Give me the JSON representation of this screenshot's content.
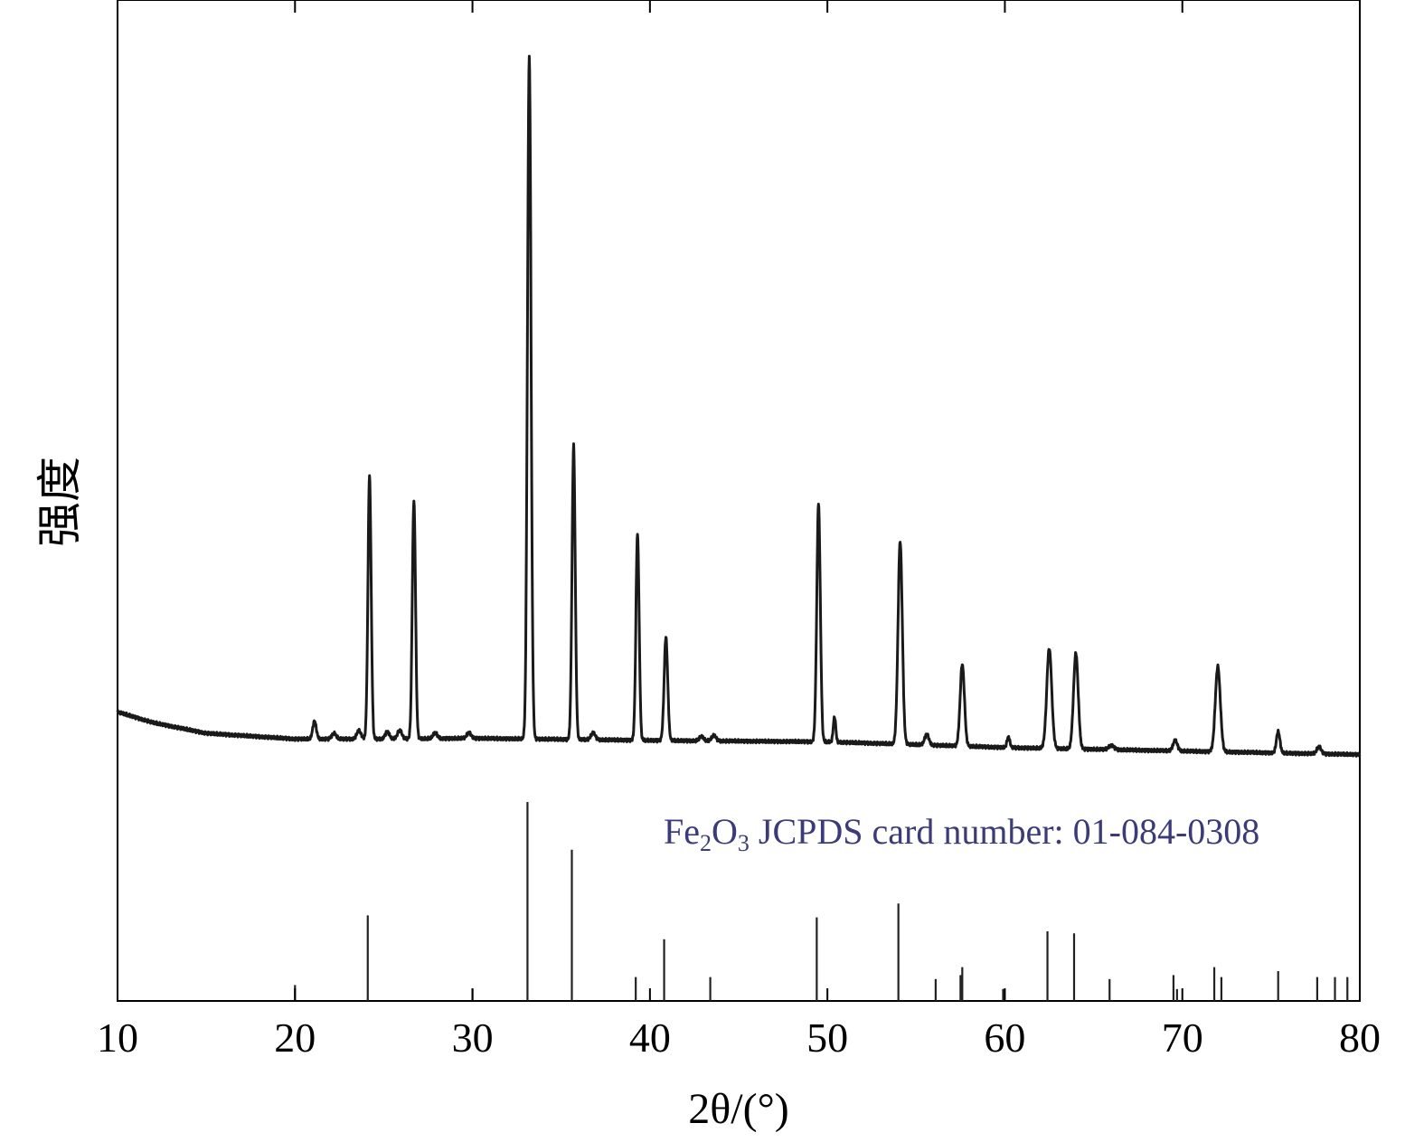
{
  "chart_data": {
    "type": "line",
    "xlabel": "2θ/(°)",
    "ylabel": "强度",
    "xlim": [
      10,
      80
    ],
    "x_ticks": [
      "10",
      "20",
      "30",
      "40",
      "50",
      "60",
      "70",
      "80"
    ],
    "grid": false,
    "line_color": "#1a1a1a",
    "reference_color": "#3b3b7a",
    "series": [
      {
        "baseline": [
          [
            10,
            0.1
          ],
          [
            12,
            0.085
          ],
          [
            15,
            0.07
          ],
          [
            20,
            0.062
          ],
          [
            25,
            0.062
          ],
          [
            30,
            0.063
          ],
          [
            40,
            0.06
          ],
          [
            50,
            0.058
          ],
          [
            60,
            0.05
          ],
          [
            70,
            0.045
          ],
          [
            80,
            0.04
          ]
        ],
        "peaks": [
          {
            "x": 21.1,
            "h": 0.025,
            "w": 0.1
          },
          {
            "x": 22.2,
            "h": 0.008,
            "w": 0.12
          },
          {
            "x": 23.6,
            "h": 0.012,
            "w": 0.12
          },
          {
            "x": 24.2,
            "h": 0.37,
            "w": 0.09
          },
          {
            "x": 25.2,
            "h": 0.01,
            "w": 0.12
          },
          {
            "x": 25.9,
            "h": 0.012,
            "w": 0.12
          },
          {
            "x": 26.7,
            "h": 0.335,
            "w": 0.09
          },
          {
            "x": 27.9,
            "h": 0.008,
            "w": 0.12
          },
          {
            "x": 29.8,
            "h": 0.008,
            "w": 0.12
          },
          {
            "x": 33.2,
            "h": 0.96,
            "w": 0.1
          },
          {
            "x": 35.7,
            "h": 0.415,
            "w": 0.09
          },
          {
            "x": 36.8,
            "h": 0.01,
            "w": 0.12
          },
          {
            "x": 39.3,
            "h": 0.29,
            "w": 0.09
          },
          {
            "x": 40.9,
            "h": 0.145,
            "w": 0.1
          },
          {
            "x": 42.9,
            "h": 0.006,
            "w": 0.12
          },
          {
            "x": 43.6,
            "h": 0.008,
            "w": 0.12
          },
          {
            "x": 49.5,
            "h": 0.335,
            "w": 0.1
          },
          {
            "x": 50.4,
            "h": 0.035,
            "w": 0.07
          },
          {
            "x": 54.1,
            "h": 0.285,
            "w": 0.12
          },
          {
            "x": 55.6,
            "h": 0.015,
            "w": 0.12
          },
          {
            "x": 57.6,
            "h": 0.115,
            "w": 0.12
          },
          {
            "x": 60.2,
            "h": 0.015,
            "w": 0.08
          },
          {
            "x": 62.5,
            "h": 0.14,
            "w": 0.14
          },
          {
            "x": 64.0,
            "h": 0.135,
            "w": 0.13
          },
          {
            "x": 66.0,
            "h": 0.006,
            "w": 0.15
          },
          {
            "x": 69.6,
            "h": 0.015,
            "w": 0.12
          },
          {
            "x": 72.0,
            "h": 0.12,
            "w": 0.14
          },
          {
            "x": 75.4,
            "h": 0.03,
            "w": 0.1
          },
          {
            "x": 77.7,
            "h": 0.01,
            "w": 0.12
          }
        ]
      }
    ],
    "reference": {
      "label_parts": [
        "Fe",
        "2",
        "O",
        "3",
        " JCPDS card number: 01-084-0308"
      ],
      "lines": [
        {
          "x": 20.0,
          "h": 0.08
        },
        {
          "x": 24.1,
          "h": 0.43
        },
        {
          "x": 30.0,
          "h": 0.06
        },
        {
          "x": 33.1,
          "h": 1.0
        },
        {
          "x": 35.6,
          "h": 0.76
        },
        {
          "x": 39.2,
          "h": 0.12
        },
        {
          "x": 40.8,
          "h": 0.31
        },
        {
          "x": 43.4,
          "h": 0.12
        },
        {
          "x": 49.4,
          "h": 0.42
        },
        {
          "x": 54.0,
          "h": 0.49
        },
        {
          "x": 56.1,
          "h": 0.11
        },
        {
          "x": 57.5,
          "h": 0.13
        },
        {
          "x": 57.6,
          "h": 0.17
        },
        {
          "x": 59.9,
          "h": 0.06
        },
        {
          "x": 62.4,
          "h": 0.35
        },
        {
          "x": 63.9,
          "h": 0.34
        },
        {
          "x": 65.9,
          "h": 0.11
        },
        {
          "x": 69.5,
          "h": 0.13
        },
        {
          "x": 69.7,
          "h": 0.06
        },
        {
          "x": 71.8,
          "h": 0.17
        },
        {
          "x": 72.2,
          "h": 0.12
        },
        {
          "x": 75.4,
          "h": 0.15
        },
        {
          "x": 77.6,
          "h": 0.12
        },
        {
          "x": 78.6,
          "h": 0.12
        },
        {
          "x": 79.3,
          "h": 0.12
        }
      ]
    }
  }
}
